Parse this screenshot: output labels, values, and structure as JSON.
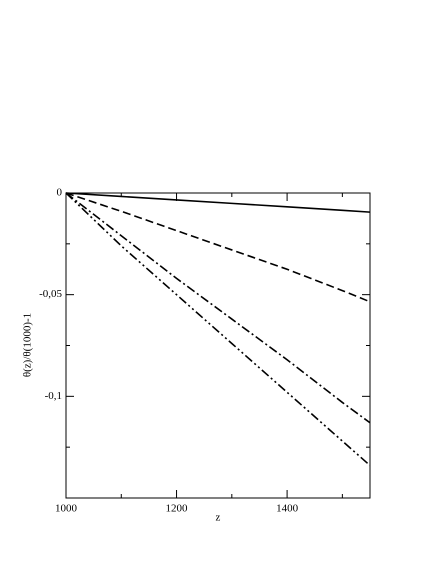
{
  "chart_data": {
    "type": "line",
    "x_label": "z",
    "y_label": "θ(z)/θ(1000)-1",
    "x": [
      1000,
      1100,
      1200,
      1300,
      1400,
      1500,
      1550
    ],
    "series": [
      {
        "color": "#000000",
        "dash": "solid",
        "values": [
          0,
          -0.0017,
          -0.0034,
          -0.0051,
          -0.0068,
          -0.0085,
          -0.0094
        ]
      },
      {
        "color": "#000000",
        "dash": "dashed",
        "values": [
          0,
          -0.009,
          -0.0185,
          -0.028,
          -0.0375,
          -0.048,
          -0.0535
        ]
      },
      {
        "color": "#000000",
        "dash": "dash-dot",
        "values": [
          0,
          -0.021,
          -0.042,
          -0.062,
          -0.082,
          -0.103,
          -0.113
        ]
      },
      {
        "color": "#000000",
        "dash": "dash-dot-dot",
        "values": [
          0,
          -0.026,
          -0.05,
          -0.074,
          -0.098,
          -0.122,
          -0.134
        ]
      }
    ],
    "xlim": [
      1000,
      1550
    ],
    "xticks": [
      1000,
      1200,
      1400
    ],
    "xminorticks": [
      1100,
      1300,
      1500
    ],
    "ylim": [
      -0.15,
      0
    ],
    "yticks": [
      {
        "value": 0,
        "label": "0"
      },
      {
        "value": -0.05,
        "label": "-0,05"
      },
      {
        "value": -0.1,
        "label": "-0,1"
      }
    ],
    "yminorticks": [
      -0.125,
      -0.075,
      -0.025
    ],
    "grid": false
  }
}
